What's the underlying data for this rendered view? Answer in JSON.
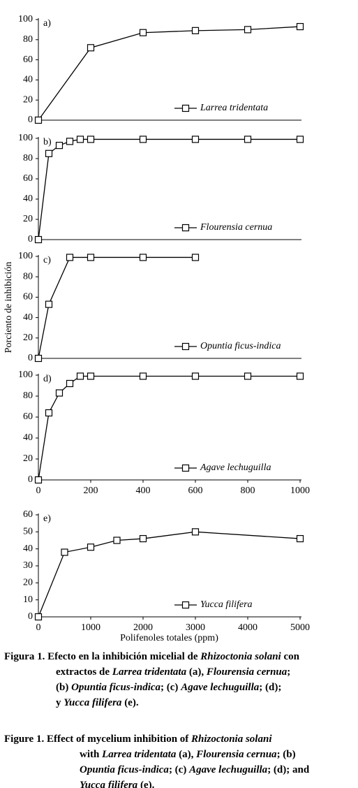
{
  "chart_data": [
    {
      "type": "line",
      "label": "a)",
      "x": [
        0,
        200,
        400,
        600,
        800,
        1000
      ],
      "series": [
        {
          "name": "Larrea tridentata",
          "color": "#000000",
          "values": [
            0,
            72,
            87,
            89,
            90,
            93
          ]
        }
      ],
      "xlim": [
        0,
        1000
      ],
      "ylim": [
        0,
        100
      ],
      "yticks": [
        0,
        20,
        40,
        60,
        80,
        100
      ],
      "legend": "lower right"
    },
    {
      "type": "line",
      "label": "b)",
      "x": [
        0,
        40,
        80,
        120,
        160,
        200,
        400,
        600,
        800,
        1000
      ],
      "series": [
        {
          "name": "Flourensia cernua",
          "color": "#000000",
          "values": [
            0,
            85,
            93,
            97,
            99,
            99,
            99,
            99,
            99,
            99
          ]
        }
      ],
      "xlim": [
        0,
        1000
      ],
      "ylim": [
        0,
        100
      ],
      "yticks": [
        0,
        20,
        40,
        60,
        80,
        100
      ],
      "legend": "lower right"
    },
    {
      "type": "line",
      "label": "c)",
      "x": [
        0,
        40,
        120,
        200,
        400,
        600
      ],
      "series": [
        {
          "name": "Opuntia ficus-indica",
          "color": "#000000",
          "values": [
            0,
            53,
            99,
            99,
            99,
            99
          ]
        }
      ],
      "xlim": [
        0,
        1000
      ],
      "ylim": [
        0,
        100
      ],
      "yticks": [
        0,
        20,
        40,
        60,
        80,
        100
      ],
      "legend": "lower right",
      "ylabel": "Porciento de inhibición"
    },
    {
      "type": "line",
      "label": "d)",
      "x": [
        0,
        40,
        80,
        120,
        160,
        200,
        400,
        600,
        800,
        1000
      ],
      "series": [
        {
          "name": "Agave lechuguilla",
          "color": "#000000",
          "values": [
            0,
            64,
            83,
            92,
            99,
            99,
            99,
            99,
            99,
            99
          ]
        }
      ],
      "xlim": [
        0,
        1000
      ],
      "xticks": [
        0,
        200,
        400,
        600,
        800,
        1000
      ],
      "ylim": [
        0,
        100
      ],
      "yticks": [
        0,
        20,
        40,
        60,
        80,
        100
      ],
      "legend": "lower right"
    },
    {
      "type": "line",
      "label": "e)",
      "x": [
        0,
        500,
        1000,
        1500,
        2000,
        3000,
        5000
      ],
      "series": [
        {
          "name": "Yucca filifera",
          "color": "#000000",
          "values": [
            0,
            38,
            41,
            45,
            46,
            50,
            46
          ]
        }
      ],
      "xlim": [
        0,
        5000
      ],
      "xticks": [
        0,
        1000,
        2000,
        3000,
        4000,
        5000
      ],
      "ylim": [
        0,
        60
      ],
      "yticks": [
        0,
        10,
        20,
        30,
        40,
        50,
        60
      ],
      "legend": "lower right",
      "xlabel": "Polifenoles totales (ppm)"
    }
  ],
  "captions": [
    {
      "lines": [
        [
          {
            "text": "Figura 1. Efecto en la inhibición micelial de "
          },
          {
            "text": "Rhizoctonia solani",
            "italic": true
          },
          {
            "text": " con"
          }
        ],
        [
          {
            "text": "extractos de "
          },
          {
            "text": "Larrea tridentata",
            "italic": true
          },
          {
            "text": " (a), "
          },
          {
            "text": "Flourensia cernua",
            "italic": true
          },
          {
            "text": ";"
          }
        ],
        [
          {
            "text": "(b) "
          },
          {
            "text": "Opuntia ficus-indica",
            "italic": true
          },
          {
            "text": "; (c) "
          },
          {
            "text": "Agave lechuguilla",
            "italic": true
          },
          {
            "text": "; (d);"
          }
        ],
        [
          {
            "text": "y "
          },
          {
            "text": "Yucca filifera",
            "italic": true
          },
          {
            "text": " (e)."
          }
        ]
      ]
    },
    {
      "lines": [
        [
          {
            "text": "Figure 1. Effect of mycelium inhibition of "
          },
          {
            "text": "Rhizoctonia solani",
            "italic": true
          }
        ],
        [
          {
            "text": "with "
          },
          {
            "text": "Larrea tridentata",
            "italic": true
          },
          {
            "text": " (a), "
          },
          {
            "text": "Flourensia cernua",
            "italic": true
          },
          {
            "text": "; (b)"
          }
        ],
        [
          {
            "text": "Opuntia ficus-indica",
            "italic": true
          },
          {
            "text": "; (c) "
          },
          {
            "text": "Agave lechuguilla",
            "italic": true
          },
          {
            "text": "; (d); and"
          }
        ],
        [
          {
            "text": "Yucca filifera",
            "italic": true
          },
          {
            "text": " (e)."
          }
        ]
      ]
    }
  ]
}
